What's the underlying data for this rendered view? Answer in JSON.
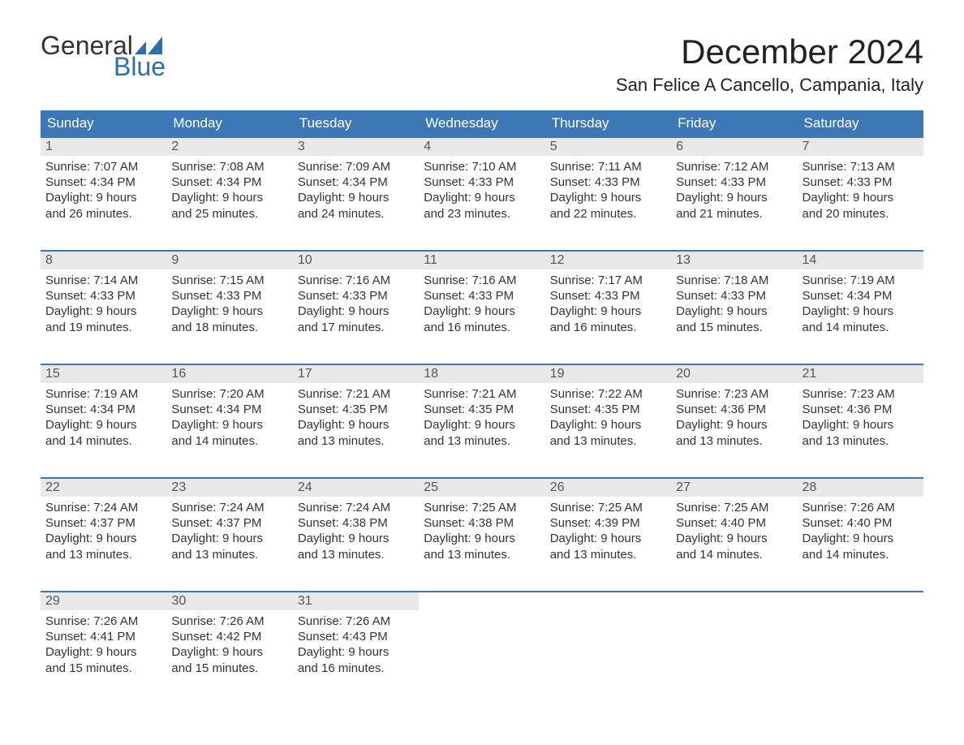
{
  "logo": {
    "word1": "General",
    "word2": "Blue"
  },
  "title": "December 2024",
  "location": "San Felice A Cancello, Campania, Italy",
  "colors": {
    "header_bg": "#3b78b5",
    "header_text": "#ffffff",
    "daynum_bg": "#e8e8e8",
    "daynum_text": "#555555",
    "body_text": "#333333",
    "week_border": "#3b78b5",
    "logo_accent": "#2b6fb3"
  },
  "day_headers": [
    "Sunday",
    "Monday",
    "Tuesday",
    "Wednesday",
    "Thursday",
    "Friday",
    "Saturday"
  ],
  "weeks": [
    [
      {
        "n": "1",
        "sunrise": "Sunrise: 7:07 AM",
        "sunset": "Sunset: 4:34 PM",
        "day1": "Daylight: 9 hours",
        "day2": "and 26 minutes."
      },
      {
        "n": "2",
        "sunrise": "Sunrise: 7:08 AM",
        "sunset": "Sunset: 4:34 PM",
        "day1": "Daylight: 9 hours",
        "day2": "and 25 minutes."
      },
      {
        "n": "3",
        "sunrise": "Sunrise: 7:09 AM",
        "sunset": "Sunset: 4:34 PM",
        "day1": "Daylight: 9 hours",
        "day2": "and 24 minutes."
      },
      {
        "n": "4",
        "sunrise": "Sunrise: 7:10 AM",
        "sunset": "Sunset: 4:33 PM",
        "day1": "Daylight: 9 hours",
        "day2": "and 23 minutes."
      },
      {
        "n": "5",
        "sunrise": "Sunrise: 7:11 AM",
        "sunset": "Sunset: 4:33 PM",
        "day1": "Daylight: 9 hours",
        "day2": "and 22 minutes."
      },
      {
        "n": "6",
        "sunrise": "Sunrise: 7:12 AM",
        "sunset": "Sunset: 4:33 PM",
        "day1": "Daylight: 9 hours",
        "day2": "and 21 minutes."
      },
      {
        "n": "7",
        "sunrise": "Sunrise: 7:13 AM",
        "sunset": "Sunset: 4:33 PM",
        "day1": "Daylight: 9 hours",
        "day2": "and 20 minutes."
      }
    ],
    [
      {
        "n": "8",
        "sunrise": "Sunrise: 7:14 AM",
        "sunset": "Sunset: 4:33 PM",
        "day1": "Daylight: 9 hours",
        "day2": "and 19 minutes."
      },
      {
        "n": "9",
        "sunrise": "Sunrise: 7:15 AM",
        "sunset": "Sunset: 4:33 PM",
        "day1": "Daylight: 9 hours",
        "day2": "and 18 minutes."
      },
      {
        "n": "10",
        "sunrise": "Sunrise: 7:16 AM",
        "sunset": "Sunset: 4:33 PM",
        "day1": "Daylight: 9 hours",
        "day2": "and 17 minutes."
      },
      {
        "n": "11",
        "sunrise": "Sunrise: 7:16 AM",
        "sunset": "Sunset: 4:33 PM",
        "day1": "Daylight: 9 hours",
        "day2": "and 16 minutes."
      },
      {
        "n": "12",
        "sunrise": "Sunrise: 7:17 AM",
        "sunset": "Sunset: 4:33 PM",
        "day1": "Daylight: 9 hours",
        "day2": "and 16 minutes."
      },
      {
        "n": "13",
        "sunrise": "Sunrise: 7:18 AM",
        "sunset": "Sunset: 4:33 PM",
        "day1": "Daylight: 9 hours",
        "day2": "and 15 minutes."
      },
      {
        "n": "14",
        "sunrise": "Sunrise: 7:19 AM",
        "sunset": "Sunset: 4:34 PM",
        "day1": "Daylight: 9 hours",
        "day2": "and 14 minutes."
      }
    ],
    [
      {
        "n": "15",
        "sunrise": "Sunrise: 7:19 AM",
        "sunset": "Sunset: 4:34 PM",
        "day1": "Daylight: 9 hours",
        "day2": "and 14 minutes."
      },
      {
        "n": "16",
        "sunrise": "Sunrise: 7:20 AM",
        "sunset": "Sunset: 4:34 PM",
        "day1": "Daylight: 9 hours",
        "day2": "and 14 minutes."
      },
      {
        "n": "17",
        "sunrise": "Sunrise: 7:21 AM",
        "sunset": "Sunset: 4:35 PM",
        "day1": "Daylight: 9 hours",
        "day2": "and 13 minutes."
      },
      {
        "n": "18",
        "sunrise": "Sunrise: 7:21 AM",
        "sunset": "Sunset: 4:35 PM",
        "day1": "Daylight: 9 hours",
        "day2": "and 13 minutes."
      },
      {
        "n": "19",
        "sunrise": "Sunrise: 7:22 AM",
        "sunset": "Sunset: 4:35 PM",
        "day1": "Daylight: 9 hours",
        "day2": "and 13 minutes."
      },
      {
        "n": "20",
        "sunrise": "Sunrise: 7:23 AM",
        "sunset": "Sunset: 4:36 PM",
        "day1": "Daylight: 9 hours",
        "day2": "and 13 minutes."
      },
      {
        "n": "21",
        "sunrise": "Sunrise: 7:23 AM",
        "sunset": "Sunset: 4:36 PM",
        "day1": "Daylight: 9 hours",
        "day2": "and 13 minutes."
      }
    ],
    [
      {
        "n": "22",
        "sunrise": "Sunrise: 7:24 AM",
        "sunset": "Sunset: 4:37 PM",
        "day1": "Daylight: 9 hours",
        "day2": "and 13 minutes."
      },
      {
        "n": "23",
        "sunrise": "Sunrise: 7:24 AM",
        "sunset": "Sunset: 4:37 PM",
        "day1": "Daylight: 9 hours",
        "day2": "and 13 minutes."
      },
      {
        "n": "24",
        "sunrise": "Sunrise: 7:24 AM",
        "sunset": "Sunset: 4:38 PM",
        "day1": "Daylight: 9 hours",
        "day2": "and 13 minutes."
      },
      {
        "n": "25",
        "sunrise": "Sunrise: 7:25 AM",
        "sunset": "Sunset: 4:38 PM",
        "day1": "Daylight: 9 hours",
        "day2": "and 13 minutes."
      },
      {
        "n": "26",
        "sunrise": "Sunrise: 7:25 AM",
        "sunset": "Sunset: 4:39 PM",
        "day1": "Daylight: 9 hours",
        "day2": "and 13 minutes."
      },
      {
        "n": "27",
        "sunrise": "Sunrise: 7:25 AM",
        "sunset": "Sunset: 4:40 PM",
        "day1": "Daylight: 9 hours",
        "day2": "and 14 minutes."
      },
      {
        "n": "28",
        "sunrise": "Sunrise: 7:26 AM",
        "sunset": "Sunset: 4:40 PM",
        "day1": "Daylight: 9 hours",
        "day2": "and 14 minutes."
      }
    ],
    [
      {
        "n": "29",
        "sunrise": "Sunrise: 7:26 AM",
        "sunset": "Sunset: 4:41 PM",
        "day1": "Daylight: 9 hours",
        "day2": "and 15 minutes."
      },
      {
        "n": "30",
        "sunrise": "Sunrise: 7:26 AM",
        "sunset": "Sunset: 4:42 PM",
        "day1": "Daylight: 9 hours",
        "day2": "and 15 minutes."
      },
      {
        "n": "31",
        "sunrise": "Sunrise: 7:26 AM",
        "sunset": "Sunset: 4:43 PM",
        "day1": "Daylight: 9 hours",
        "day2": "and 16 minutes."
      },
      {
        "empty": true
      },
      {
        "empty": true
      },
      {
        "empty": true
      },
      {
        "empty": true
      }
    ]
  ]
}
